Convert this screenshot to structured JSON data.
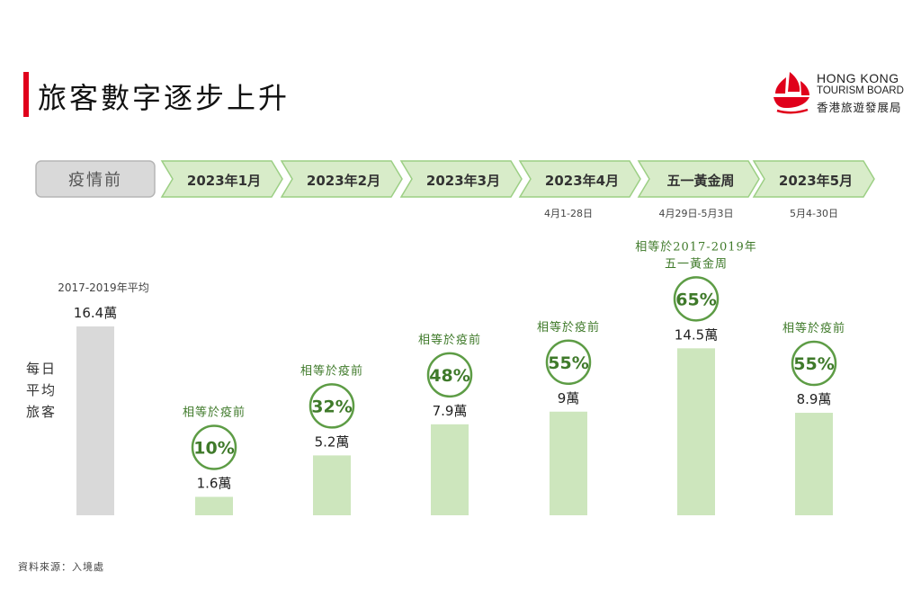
{
  "header": {
    "title": "旅客數字逐步上升",
    "logo": {
      "line1": "HONG KONG",
      "line2": "TOURISM BOARD",
      "line3": "香港旅遊發展局",
      "colors": {
        "mark": "#e0001b"
      }
    }
  },
  "colors": {
    "accent_red": "#e0001b",
    "chevron_fill": "#d8ecc9",
    "chevron_stroke": "#9ccf84",
    "bar_green": "#cde6bd",
    "bar_grey": "#d9d9d9",
    "circle_stroke": "#5d9c45",
    "circle_text": "#3f7a2a"
  },
  "y_axis_label": [
    "每日",
    "平均",
    "旅客"
  ],
  "source": "資料來源：入境處",
  "chart_data": {
    "type": "bar",
    "unit": "萬",
    "categories": [
      "疫情前",
      "2023年1月",
      "2023年2月",
      "2023年3月",
      "2023年4月",
      "五一黃金周",
      "2023年5月"
    ],
    "date_notes": [
      "",
      "",
      "",
      "",
      "4月1-28日",
      "4月29日-5月3日",
      "5月4-30日"
    ],
    "values": [
      16.4,
      1.6,
      5.2,
      7.9,
      9,
      14.5,
      8.9
    ],
    "value_labels": [
      "16.4萬",
      "1.6萬",
      "5.2萬",
      "7.9萬",
      "9萬",
      "14.5萬",
      "8.9萬"
    ],
    "comparison_labels": [
      "",
      "相等於疫前",
      "相等於疫前",
      "相等於疫前",
      "相等於疫前",
      "相等於2017-2019年\n五一黃金周",
      "相等於疫前"
    ],
    "percentages": [
      "",
      "10%",
      "32%",
      "48%",
      "55%",
      "65%",
      "55%"
    ],
    "baseline_label": "2017-2019年平均",
    "ylim": [
      0,
      16.4
    ]
  }
}
